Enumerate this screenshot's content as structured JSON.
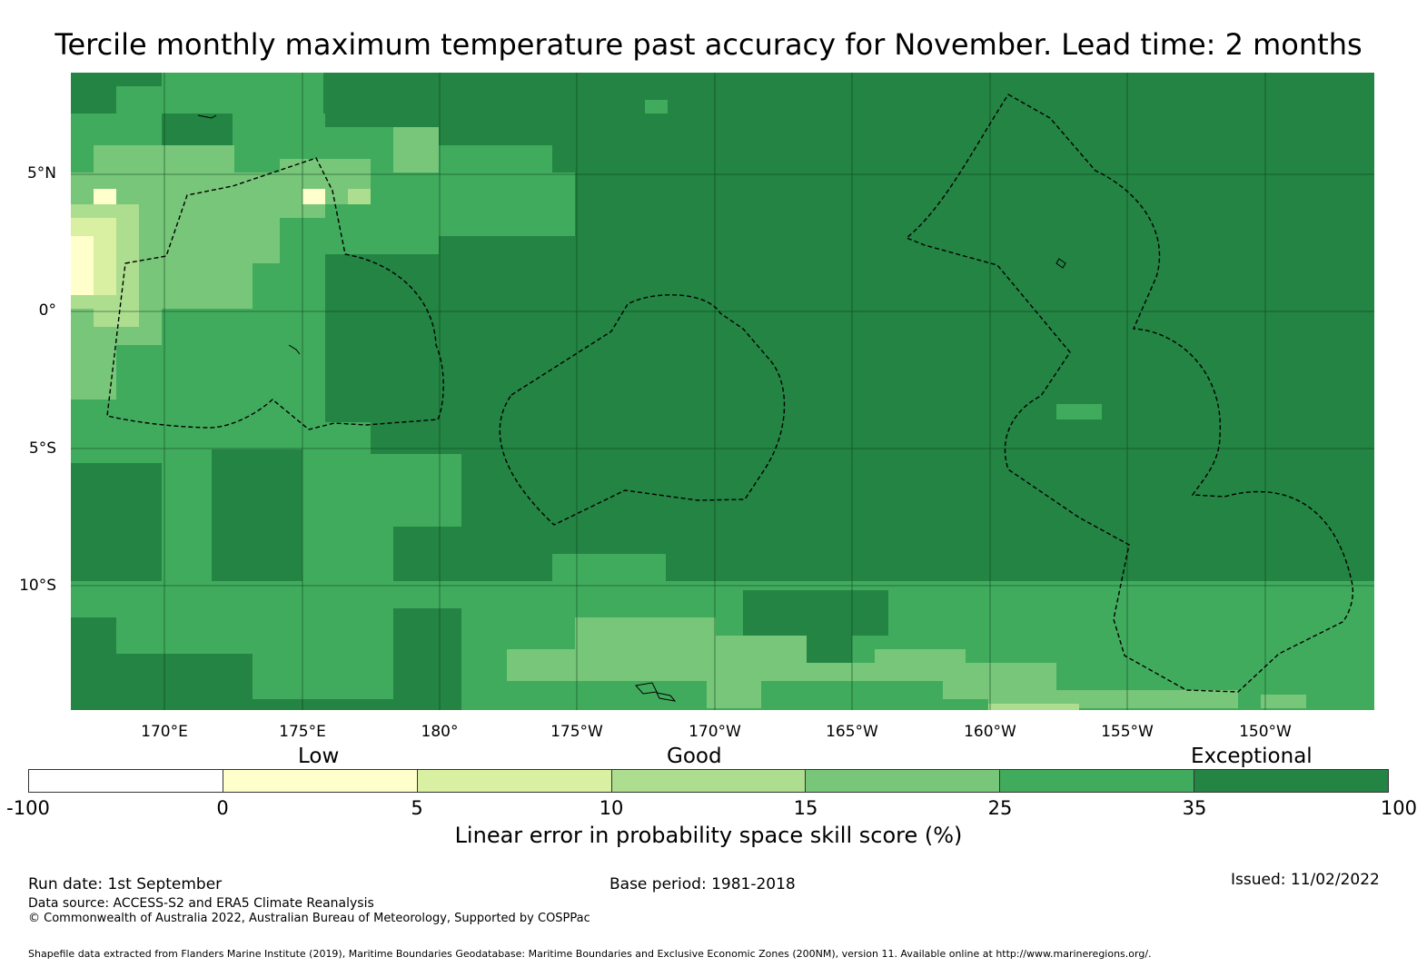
{
  "title": "Tercile monthly maximum temperature past accuracy for November. Lead time: 2 months",
  "map": {
    "lat_labels": [
      "5°N",
      "0°",
      "5°S",
      "10°S"
    ],
    "lon_labels": [
      "170°E",
      "175°E",
      "180°",
      "175°W",
      "170°W",
      "165°W",
      "160°W",
      "155°W",
      "150°W"
    ]
  },
  "colorbar": {
    "qualitative": [
      "Low",
      "Good",
      "Exceptional"
    ],
    "ticks": [
      "-100",
      "0",
      "5",
      "10",
      "15",
      "25",
      "35",
      "100"
    ],
    "colors": [
      "#ffffff",
      "#ffffcc",
      "#d9f0a3",
      "#addd8e",
      "#78c679",
      "#41ab5d",
      "#238443"
    ],
    "label": "Linear error in probability space skill score (%)"
  },
  "footer": {
    "run_date": "Run date: 1st September",
    "base_period": "Base period: 1981-2018",
    "issued": "Issued: 11/02/2022",
    "data_source": "Data source: ACCESS-S2 and ERA5 Climate Reanalysis",
    "copyright": "© Commonwealth of Australia 2022, Australian Bureau of Meteorology, Supported by COSPPac",
    "shapefile": "Shapefile data extracted from Flanders Marine Institute (2019), Maritime Boundaries Geodatabase: Maritime Boundaries and Exclusive Economic Zones (200NM), version 11. Available online at http://www.marineregions.org/."
  }
}
